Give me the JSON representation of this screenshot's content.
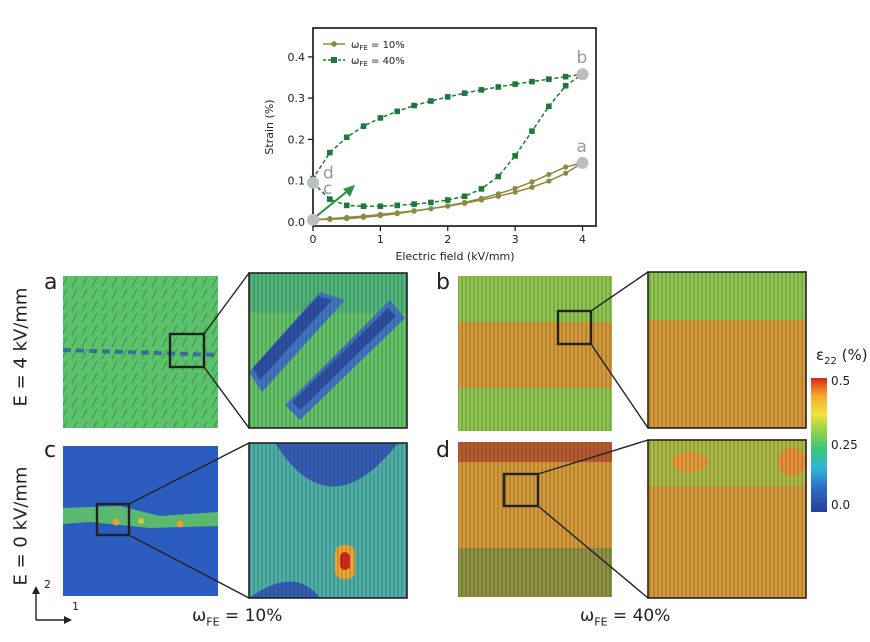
{
  "chart_data": {
    "type": "line",
    "xlabel": "Electric field (kV/mm)",
    "ylabel": "Strain (%)",
    "xlim": [
      0,
      4.2
    ],
    "ylim": [
      -0.01,
      0.47
    ],
    "xticks": [
      "0",
      "1",
      "2",
      "3",
      "4"
    ],
    "yticks": [
      "0.0",
      "0.1",
      "0.2",
      "0.3",
      "0.4"
    ],
    "legend_position": "top-left",
    "series": [
      {
        "name": "ω_FE = 10%",
        "style": "solid-circle",
        "color": "#8c8a3e",
        "x": [
          0,
          0.25,
          0.5,
          0.75,
          1,
          1.25,
          1.5,
          1.75,
          2,
          2.25,
          2.5,
          2.75,
          3,
          3.25,
          3.5,
          3.75,
          4,
          3.75,
          3.5,
          3.25,
          3,
          2.75,
          2.5,
          2.25,
          2,
          1.75,
          1.5,
          1.25,
          1,
          0.75,
          0.5,
          0.25,
          0
        ],
        "y": [
          0.005,
          0.008,
          0.011,
          0.014,
          0.018,
          0.022,
          0.027,
          0.032,
          0.038,
          0.045,
          0.053,
          0.062,
          0.072,
          0.084,
          0.099,
          0.118,
          0.143,
          0.133,
          0.115,
          0.097,
          0.081,
          0.068,
          0.057,
          0.047,
          0.039,
          0.032,
          0.026,
          0.02,
          0.015,
          0.011,
          0.008,
          0.006,
          0.005
        ]
      },
      {
        "name": "ω_FE = 40%",
        "style": "dashed-square",
        "color": "#1b7a3a",
        "x": [
          0,
          0.25,
          0.5,
          0.75,
          1,
          1.25,
          1.5,
          1.75,
          2,
          2.25,
          2.5,
          2.75,
          3,
          3.25,
          3.5,
          3.75,
          4,
          3.75,
          3.5,
          3.25,
          3,
          2.75,
          2.5,
          2.25,
          2,
          1.75,
          1.5,
          1.25,
          1,
          0.75,
          0.5,
          0.25,
          0
        ],
        "y": [
          0.095,
          0.055,
          0.04,
          0.038,
          0.038,
          0.04,
          0.043,
          0.047,
          0.053,
          0.062,
          0.08,
          0.11,
          0.16,
          0.22,
          0.28,
          0.33,
          0.358,
          0.352,
          0.346,
          0.34,
          0.334,
          0.327,
          0.32,
          0.312,
          0.303,
          0.293,
          0.282,
          0.268,
          0.252,
          0.232,
          0.205,
          0.168,
          0.105
        ]
      }
    ],
    "point_labels": [
      {
        "text": "a",
        "x": 4,
        "y": 0.143
      },
      {
        "text": "b",
        "x": 4,
        "y": 0.358
      },
      {
        "text": "c",
        "x": 0,
        "y": 0.005
      },
      {
        "text": "d",
        "x": 0,
        "y": 0.095
      }
    ]
  },
  "legend": {
    "entry1": "ω",
    "entry1_sub": "FE",
    "entry1_rest": " = 10%",
    "entry2": "ω",
    "entry2_sub": "FE",
    "entry2_rest": " = 40%"
  },
  "panels": {
    "a": "a",
    "b": "b",
    "c": "c",
    "d": "d"
  },
  "rows": {
    "top": "E = 4 kV/mm",
    "bottom": "E = 0 kV/mm"
  },
  "columns": {
    "left_omega": "ω",
    "left_sub": "FE",
    "left_rest": " = 10%",
    "right_omega": "ω",
    "right_sub": "FE",
    "right_rest": " = 40%"
  },
  "colorbar": {
    "title": "ε",
    "title_sub": "22",
    "title_rest": " (%)",
    "ticks": [
      "0.5",
      "0.25",
      "0.0"
    ],
    "colors": [
      "#d7261e",
      "#f3a92d",
      "#f2e23a",
      "#8fd24a",
      "#3cc47a",
      "#2fb6d6",
      "#2b6fc2",
      "#243f99"
    ]
  },
  "axes_glyph": {
    "v": "2",
    "h": "1"
  }
}
